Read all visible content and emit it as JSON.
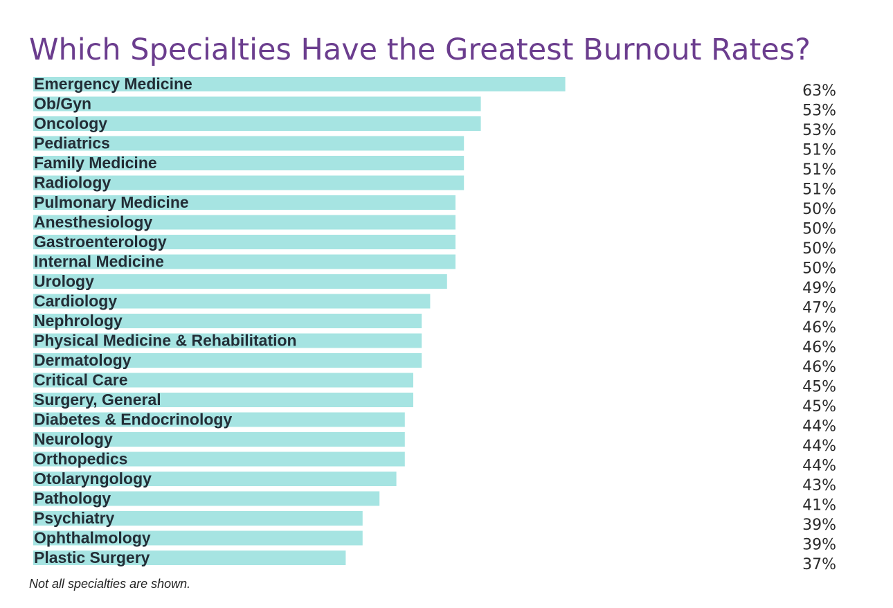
{
  "title": "Which Specialties Have the Greatest Burnout Rates?",
  "footnote": "Not all specialties are shown.",
  "colors": {
    "title": "#6b3d8e",
    "bar": "#a6e4e2",
    "label": "#232d36",
    "value": "#2a2a2a"
  },
  "chart_data": {
    "type": "bar",
    "orientation": "horizontal",
    "title": "Which Specialties Have the Greatest Burnout Rates?",
    "xlabel": "",
    "ylabel": "",
    "xlim": [
      0,
      100
    ],
    "grid": false,
    "legend": "none",
    "value_suffix": "%",
    "categories": [
      "Emergency Medicine",
      "Ob/Gyn",
      "Oncology",
      "Pediatrics",
      "Family Medicine",
      "Radiology",
      "Pulmonary Medicine",
      "Anesthesiology",
      "Gastroenterology",
      "Internal Medicine",
      "Urology",
      "Cardiology",
      "Nephrology",
      "Physical Medicine & Rehabilitation",
      "Dermatology",
      "Critical Care",
      "Surgery, General",
      "Diabetes & Endocrinology",
      "Neurology",
      "Orthopedics",
      "Otolaryngology",
      "Pathology",
      "Psychiatry",
      "Ophthalmology",
      "Plastic Surgery"
    ],
    "values": [
      63,
      53,
      53,
      51,
      51,
      51,
      50,
      50,
      50,
      50,
      49,
      47,
      46,
      46,
      46,
      45,
      45,
      44,
      44,
      44,
      43,
      41,
      39,
      39,
      37
    ]
  }
}
